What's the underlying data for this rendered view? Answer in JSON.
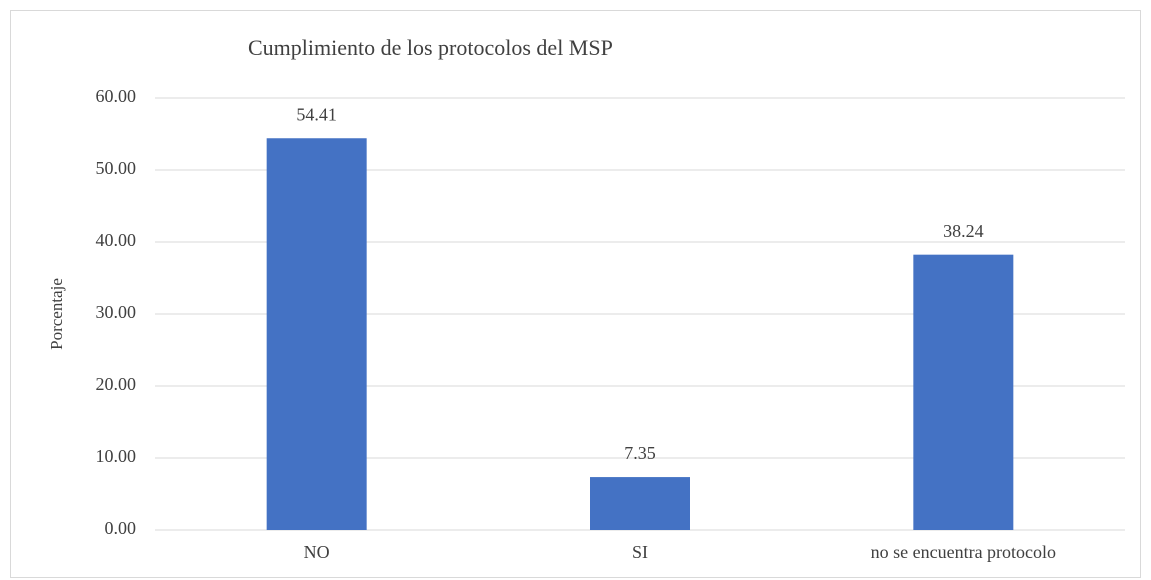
{
  "chart_data": {
    "type": "bar",
    "title": "Cumplimiento de los protocolos del MSP",
    "y_label": "Porcentaje",
    "categories": [
      "NO",
      "SI",
      "no se encuentra protocolo"
    ],
    "values": [
      54.41,
      7.35,
      38.24
    ],
    "color": "#4472c4",
    "ylim": [
      0,
      60
    ],
    "yticks": [
      {
        "value": 0,
        "label": "0.00"
      },
      {
        "value": 10,
        "label": "10.00"
      },
      {
        "value": 20,
        "label": "20.00"
      },
      {
        "value": 30,
        "label": "30.00"
      },
      {
        "value": 40,
        "label": "40.00"
      },
      {
        "value": 50,
        "label": "50.00"
      },
      {
        "value": 60,
        "label": "60.00"
      }
    ],
    "grid": true
  }
}
